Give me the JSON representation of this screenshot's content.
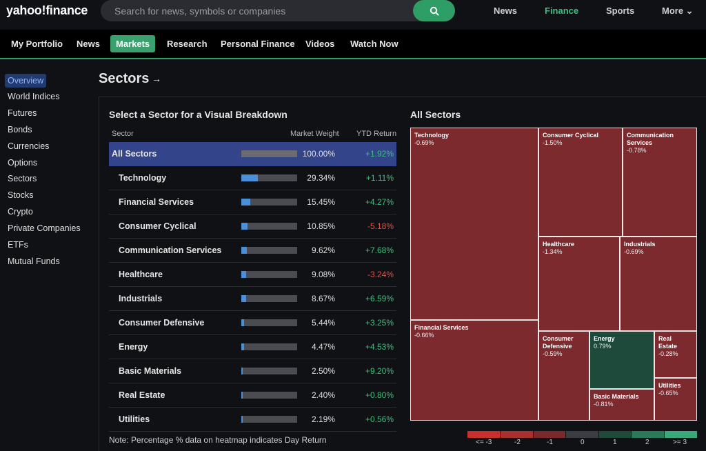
{
  "header": {
    "logo": "yahoo!finance",
    "search_placeholder": "Search for news, symbols or companies",
    "nav": [
      {
        "label": "News",
        "active": false
      },
      {
        "label": "Finance",
        "active": true
      },
      {
        "label": "Sports",
        "active": false
      },
      {
        "label": "More ⌄",
        "active": false
      }
    ]
  },
  "subnav": [
    {
      "label": "My Portfolio",
      "active": false
    },
    {
      "label": "News",
      "active": false
    },
    {
      "label": "Markets",
      "active": true
    },
    {
      "label": "Research",
      "active": false
    },
    {
      "label": "Personal Finance",
      "active": false
    },
    {
      "label": "Videos",
      "active": false
    },
    {
      "label": "Watch Now",
      "active": false
    }
  ],
  "sidebar": [
    {
      "label": "Overview",
      "active": true
    },
    {
      "label": "World Indices",
      "active": false
    },
    {
      "label": "Futures",
      "active": false
    },
    {
      "label": "Bonds",
      "active": false
    },
    {
      "label": "Currencies",
      "active": false
    },
    {
      "label": "Options",
      "active": false
    },
    {
      "label": "Sectors",
      "active": false
    },
    {
      "label": "Stocks",
      "active": false
    },
    {
      "label": "Crypto",
      "active": false
    },
    {
      "label": "Private Companies",
      "active": false
    },
    {
      "label": "ETFs",
      "active": false
    },
    {
      "label": "Mutual Funds",
      "active": false
    }
  ],
  "page": {
    "title": "Sectors",
    "left_heading": "Select a Sector for a Visual Breakdown",
    "right_heading": "All Sectors",
    "columns": {
      "sector": "Sector",
      "weight": "Market Weight",
      "ytd": "YTD Return"
    },
    "note": "Note: Percentage % data on heatmap indicates Day Return"
  },
  "sectors": [
    {
      "name": "All Sectors",
      "weight": "100.00%",
      "weight_value": 100.0,
      "ytd": "+1.92%",
      "ytd_positive": true,
      "selected": true
    },
    {
      "name": "Technology",
      "weight": "29.34%",
      "weight_value": 29.34,
      "ytd": "+1.11%",
      "ytd_positive": true,
      "selected": false
    },
    {
      "name": "Financial Services",
      "weight": "15.45%",
      "weight_value": 15.45,
      "ytd": "+4.27%",
      "ytd_positive": true,
      "selected": false
    },
    {
      "name": "Consumer Cyclical",
      "weight": "10.85%",
      "weight_value": 10.85,
      "ytd": "-5.18%",
      "ytd_positive": false,
      "selected": false
    },
    {
      "name": "Communication Services",
      "weight": "9.62%",
      "weight_value": 9.62,
      "ytd": "+7.68%",
      "ytd_positive": true,
      "selected": false
    },
    {
      "name": "Healthcare",
      "weight": "9.08%",
      "weight_value": 9.08,
      "ytd": "-3.24%",
      "ytd_positive": false,
      "selected": false
    },
    {
      "name": "Industrials",
      "weight": "8.67%",
      "weight_value": 8.67,
      "ytd": "+6.59%",
      "ytd_positive": true,
      "selected": false
    },
    {
      "name": "Consumer Defensive",
      "weight": "5.44%",
      "weight_value": 5.44,
      "ytd": "+3.25%",
      "ytd_positive": true,
      "selected": false
    },
    {
      "name": "Energy",
      "weight": "4.47%",
      "weight_value": 4.47,
      "ytd": "+4.53%",
      "ytd_positive": true,
      "selected": false
    },
    {
      "name": "Basic Materials",
      "weight": "2.50%",
      "weight_value": 2.5,
      "ytd": "+9.20%",
      "ytd_positive": true,
      "selected": false
    },
    {
      "name": "Real Estate",
      "weight": "2.40%",
      "weight_value": 2.4,
      "ytd": "+0.80%",
      "ytd_positive": true,
      "selected": false
    },
    {
      "name": "Utilities",
      "weight": "2.19%",
      "weight_value": 2.19,
      "ytd": "+0.56%",
      "ytd_positive": true,
      "selected": false
    }
  ],
  "heatmap": [
    {
      "name": "Technology",
      "day_return": "-0.69%"
    },
    {
      "name": "Consumer Cyclical",
      "day_return": "-1.50%"
    },
    {
      "name": "Communication Services",
      "day_return": "-0.78%"
    },
    {
      "name": "Healthcare",
      "day_return": "-1.34%"
    },
    {
      "name": "Industrials",
      "day_return": "-0.69%"
    },
    {
      "name": "Financial Services",
      "day_return": "-0.66%"
    },
    {
      "name": "Consumer Defensive",
      "day_return": "-0.59%"
    },
    {
      "name": "Energy",
      "day_return": "0.79%"
    },
    {
      "name": "Real Estate",
      "day_return": "-0.28%"
    },
    {
      "name": "Utilities",
      "day_return": "-0.65%"
    },
    {
      "name": "Basic Materials",
      "day_return": "-0.81%"
    }
  ],
  "legend": [
    {
      "label": "<= -3",
      "color": "#c8302e"
    },
    {
      "label": "-2",
      "color": "#a8302f"
    },
    {
      "label": "-1",
      "color": "#7a2a2c"
    },
    {
      "label": "0",
      "color": "#3a3c42"
    },
    {
      "label": "1",
      "color": "#1f4a3a"
    },
    {
      "label": "2",
      "color": "#2a7a5a"
    },
    {
      "label": ">= 3",
      "color": "#3aa878"
    }
  ],
  "colors": {
    "accent": "#2e9d66",
    "negative_cell": "#7d2a2f",
    "positive_cell": "#1e4a3c",
    "selected_row": "#33448a"
  }
}
